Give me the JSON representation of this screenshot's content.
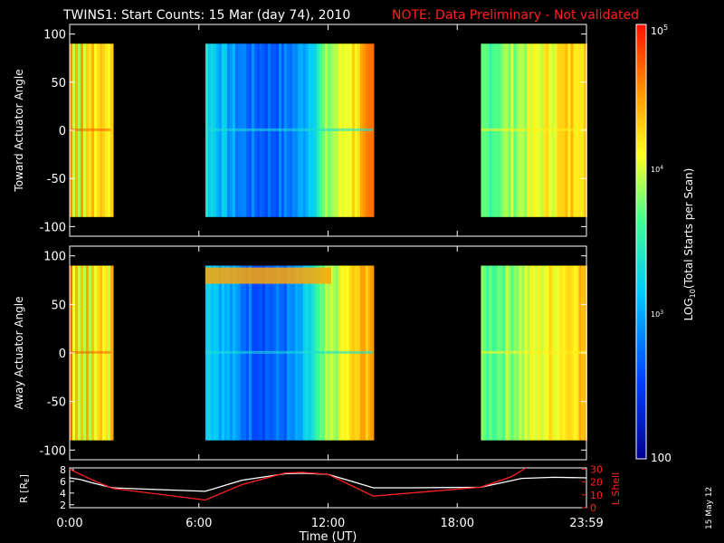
{
  "title": "TWINS1: Start Counts: 15 Mar (day  74), 2010",
  "note": "NOTE: Data Preliminary - Not validated",
  "date_stamp": "15 May 12",
  "colors": {
    "note": "#ff2020",
    "rshell": "#ffffff",
    "lshell": "#ff2020"
  },
  "chart_data": [
    {
      "type": "heatmap",
      "ylabel": "Toward Actuator Angle",
      "ylim": [
        -110,
        110
      ],
      "y_ticks": [
        "100",
        "50",
        "0",
        "-50",
        "-100"
      ],
      "data_y_range": [
        -90,
        90
      ],
      "x_range_hours": [
        0,
        24
      ],
      "segments": [
        {
          "start_h": 0.0,
          "end_h": 1.9,
          "level": 0.8
        },
        {
          "start_h": 6.3,
          "end_h": 14.1,
          "level": 0.35
        },
        {
          "start_h": 19.1,
          "end_h": 24.0,
          "level": 0.62
        }
      ]
    },
    {
      "type": "heatmap",
      "ylabel": "Away Actuator Angle",
      "ylim": [
        -110,
        110
      ],
      "y_ticks": [
        "100",
        "50",
        "0",
        "-50",
        "-100"
      ],
      "data_y_range": [
        -90,
        90
      ],
      "x_range_hours": [
        0,
        24
      ],
      "segments": [
        {
          "start_h": 0.0,
          "end_h": 1.9,
          "level": 0.8
        },
        {
          "start_h": 6.3,
          "end_h": 14.1,
          "level": 0.35
        },
        {
          "start_h": 19.1,
          "end_h": 24.0,
          "level": 0.62
        }
      ]
    },
    {
      "type": "line",
      "ylabel_left": "R [RE]",
      "ylabel_right": "L Shell",
      "left_ticks": [
        "8",
        "6",
        "4",
        "2"
      ],
      "right_ticks": [
        "30",
        "20",
        "10",
        "0"
      ],
      "xlabel": "Time (UT)",
      "x_ticks": [
        "0:00",
        "6:00",
        "12:00",
        "18:00",
        "23:59"
      ],
      "series": [
        {
          "axis": "left",
          "ylim": [
            1.5,
            8.3
          ],
          "x": [
            0,
            0.5,
            1.0,
            2.0,
            4.0,
            6.3,
            8.0,
            10.0,
            10.8,
            12.0,
            14.1,
            16.0,
            19.1,
            21.0,
            22.5,
            24.0
          ],
          "y": [
            6.6,
            6.3,
            5.8,
            4.9,
            4.6,
            4.3,
            6.2,
            7.3,
            7.4,
            7.2,
            4.9,
            4.9,
            5.0,
            6.5,
            6.7,
            6.6
          ]
        },
        {
          "axis": "right",
          "ylim": [
            0,
            31
          ],
          "x": [
            0,
            1.0,
            2.0,
            6.3,
            8.0,
            10.0,
            10.8,
            12.0,
            14.1,
            19.1,
            20.5,
            21.2
          ],
          "y": [
            30,
            22,
            15,
            6,
            18,
            27,
            27.5,
            26,
            9,
            16,
            24,
            31
          ]
        }
      ]
    }
  ],
  "colorbar": {
    "label": "LOG10(Total Starts per Scan)",
    "ticks": [
      "105",
      "104",
      "103",
      "100"
    ]
  }
}
